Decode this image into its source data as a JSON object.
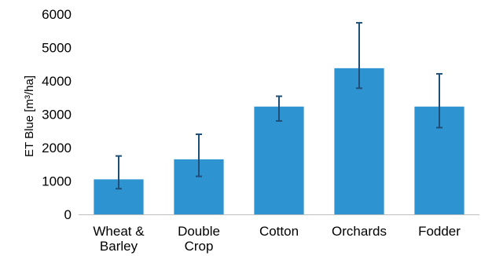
{
  "chart_data": {
    "type": "bar",
    "categories": [
      [
        "Wheat &",
        "Barley"
      ],
      [
        "Double",
        "Crop"
      ],
      [
        "Cotton"
      ],
      [
        "Orchards"
      ],
      [
        "Fodder"
      ]
    ],
    "values": [
      1050,
      1650,
      3230,
      4380,
      3230
    ],
    "error_low": [
      770,
      1140,
      2800,
      3780,
      2600
    ],
    "error_high": [
      1750,
      2400,
      3540,
      5740,
      4210
    ],
    "title": "",
    "xlabel": "",
    "ylabel": "ET Blue [m³/ha]",
    "ylim": [
      0,
      6000
    ],
    "yticks": [
      0,
      1000,
      2000,
      3000,
      4000,
      5000,
      6000
    ],
    "grid": false,
    "legend": "none",
    "colors": {
      "bar": "#2e93d1",
      "error_bar": "#1f4e79",
      "axis": "#bfbfbf"
    }
  }
}
